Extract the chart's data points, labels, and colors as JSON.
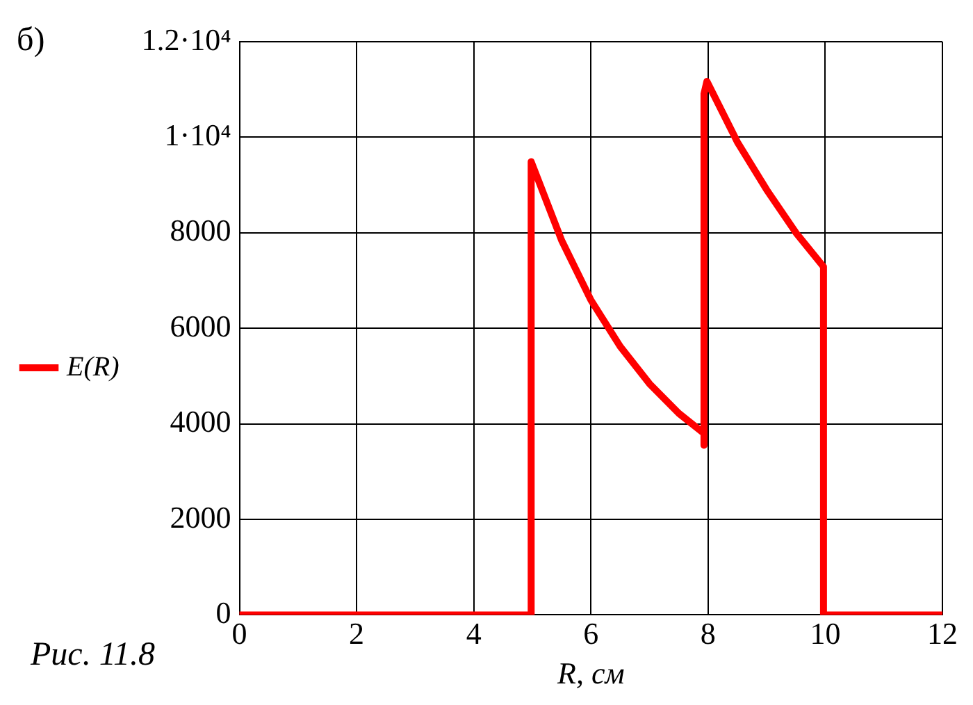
{
  "chart_data": {
    "type": "line",
    "xlabel": "R, см",
    "annotations": [
      "б)",
      "Рис. 11.8"
    ],
    "series": [
      {
        "name": "E(R)",
        "color": "#ff0000",
        "x": [
          0,
          4.98,
          4.98,
          5.5,
          6,
          6.5,
          7,
          7.5,
          7.93,
          7.93,
          7.93,
          7.98,
          8.5,
          9,
          9.5,
          9.97,
          9.97,
          12
        ],
        "values": [
          0,
          0,
          9490,
          7840,
          6590,
          5620,
          4840,
          4220,
          3800,
          3550,
          10910,
          11170,
          9900,
          8900,
          8000,
          7290,
          0,
          0
        ]
      }
    ],
    "xlim": [
      0,
      12
    ],
    "xticks": [
      0,
      2,
      4,
      6,
      8,
      10,
      12
    ],
    "ylim": [
      0,
      12000
    ],
    "yticks": [
      0,
      2000,
      4000,
      6000,
      8000,
      {
        "value": 10000,
        "label": "1·10⁴"
      },
      {
        "value": 12000,
        "label": "1.2·10⁴"
      }
    ],
    "grid": true,
    "legend": "left",
    "marker": "none",
    "line_style": "solid"
  }
}
